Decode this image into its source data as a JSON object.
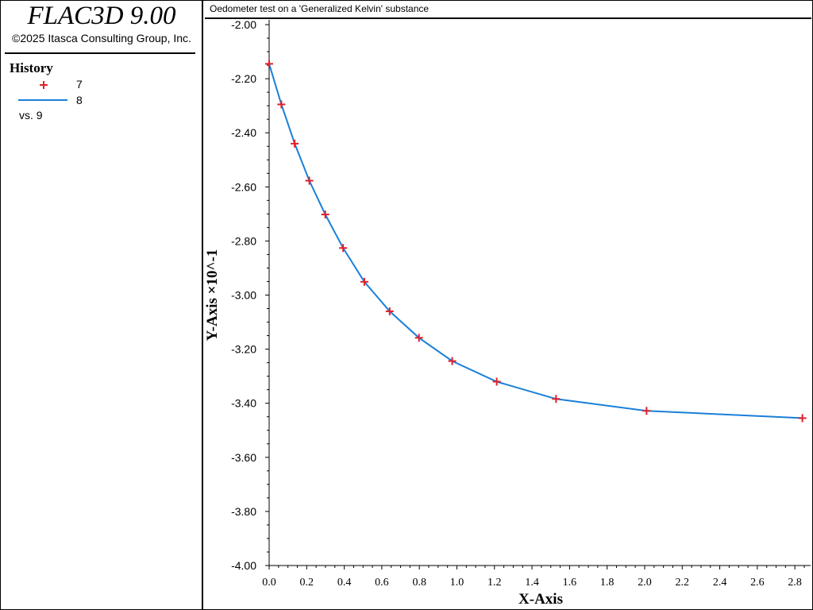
{
  "app": {
    "title": "FLAC3D 9.00",
    "copyright": "©2025 Itasca Consulting Group, Inc."
  },
  "legend": {
    "title": "History",
    "items": [
      {
        "label": "7",
        "symbol": "plus-marker",
        "color": "#e0202a"
      },
      {
        "label": "8",
        "symbol": "line",
        "color": "#1a7fd8"
      }
    ],
    "vs_label": "vs. 9"
  },
  "chart_data": {
    "type": "line",
    "title": "Oedometer test on a 'Generalized Kelvin' substance",
    "xlabel": "X-Axis",
    "ylabel": "Y-Axis ×10^-1",
    "xlim": [
      0.0,
      2.85
    ],
    "ylim": [
      -4.0,
      -2.0
    ],
    "xticks": [
      "0.0",
      "0.2",
      "0.4",
      "0.6",
      "0.8",
      "1.0",
      "1.2",
      "1.4",
      "1.6",
      "1.8",
      "2.0",
      "2.2",
      "2.4",
      "2.6",
      "2.8"
    ],
    "yticks": [
      "-2.00",
      "-2.20",
      "-2.40",
      "-2.60",
      "-2.80",
      "-3.00",
      "-3.20",
      "-3.40",
      "-3.60",
      "-3.80",
      "-4.00"
    ],
    "series": [
      {
        "name": "7",
        "style": "markers",
        "color": "#e0202a",
        "x": [
          0.0,
          0.065,
          0.136,
          0.214,
          0.299,
          0.394,
          0.507,
          0.642,
          0.798,
          0.975,
          1.212,
          1.528,
          2.01,
          2.84
        ],
        "y": [
          -2.145,
          -2.295,
          -2.44,
          -2.577,
          -2.702,
          -2.826,
          -2.951,
          -3.06,
          -3.158,
          -3.244,
          -3.32,
          -3.384,
          -3.428,
          -3.455
        ]
      },
      {
        "name": "8",
        "style": "line",
        "color": "#1a7fd8",
        "x": [
          0.0,
          0.065,
          0.136,
          0.214,
          0.299,
          0.394,
          0.507,
          0.642,
          0.798,
          0.975,
          1.212,
          1.528,
          2.01,
          2.84
        ],
        "y": [
          -2.145,
          -2.295,
          -2.44,
          -2.577,
          -2.702,
          -2.826,
          -2.951,
          -3.06,
          -3.158,
          -3.244,
          -3.32,
          -3.384,
          -3.428,
          -3.455
        ]
      }
    ]
  }
}
